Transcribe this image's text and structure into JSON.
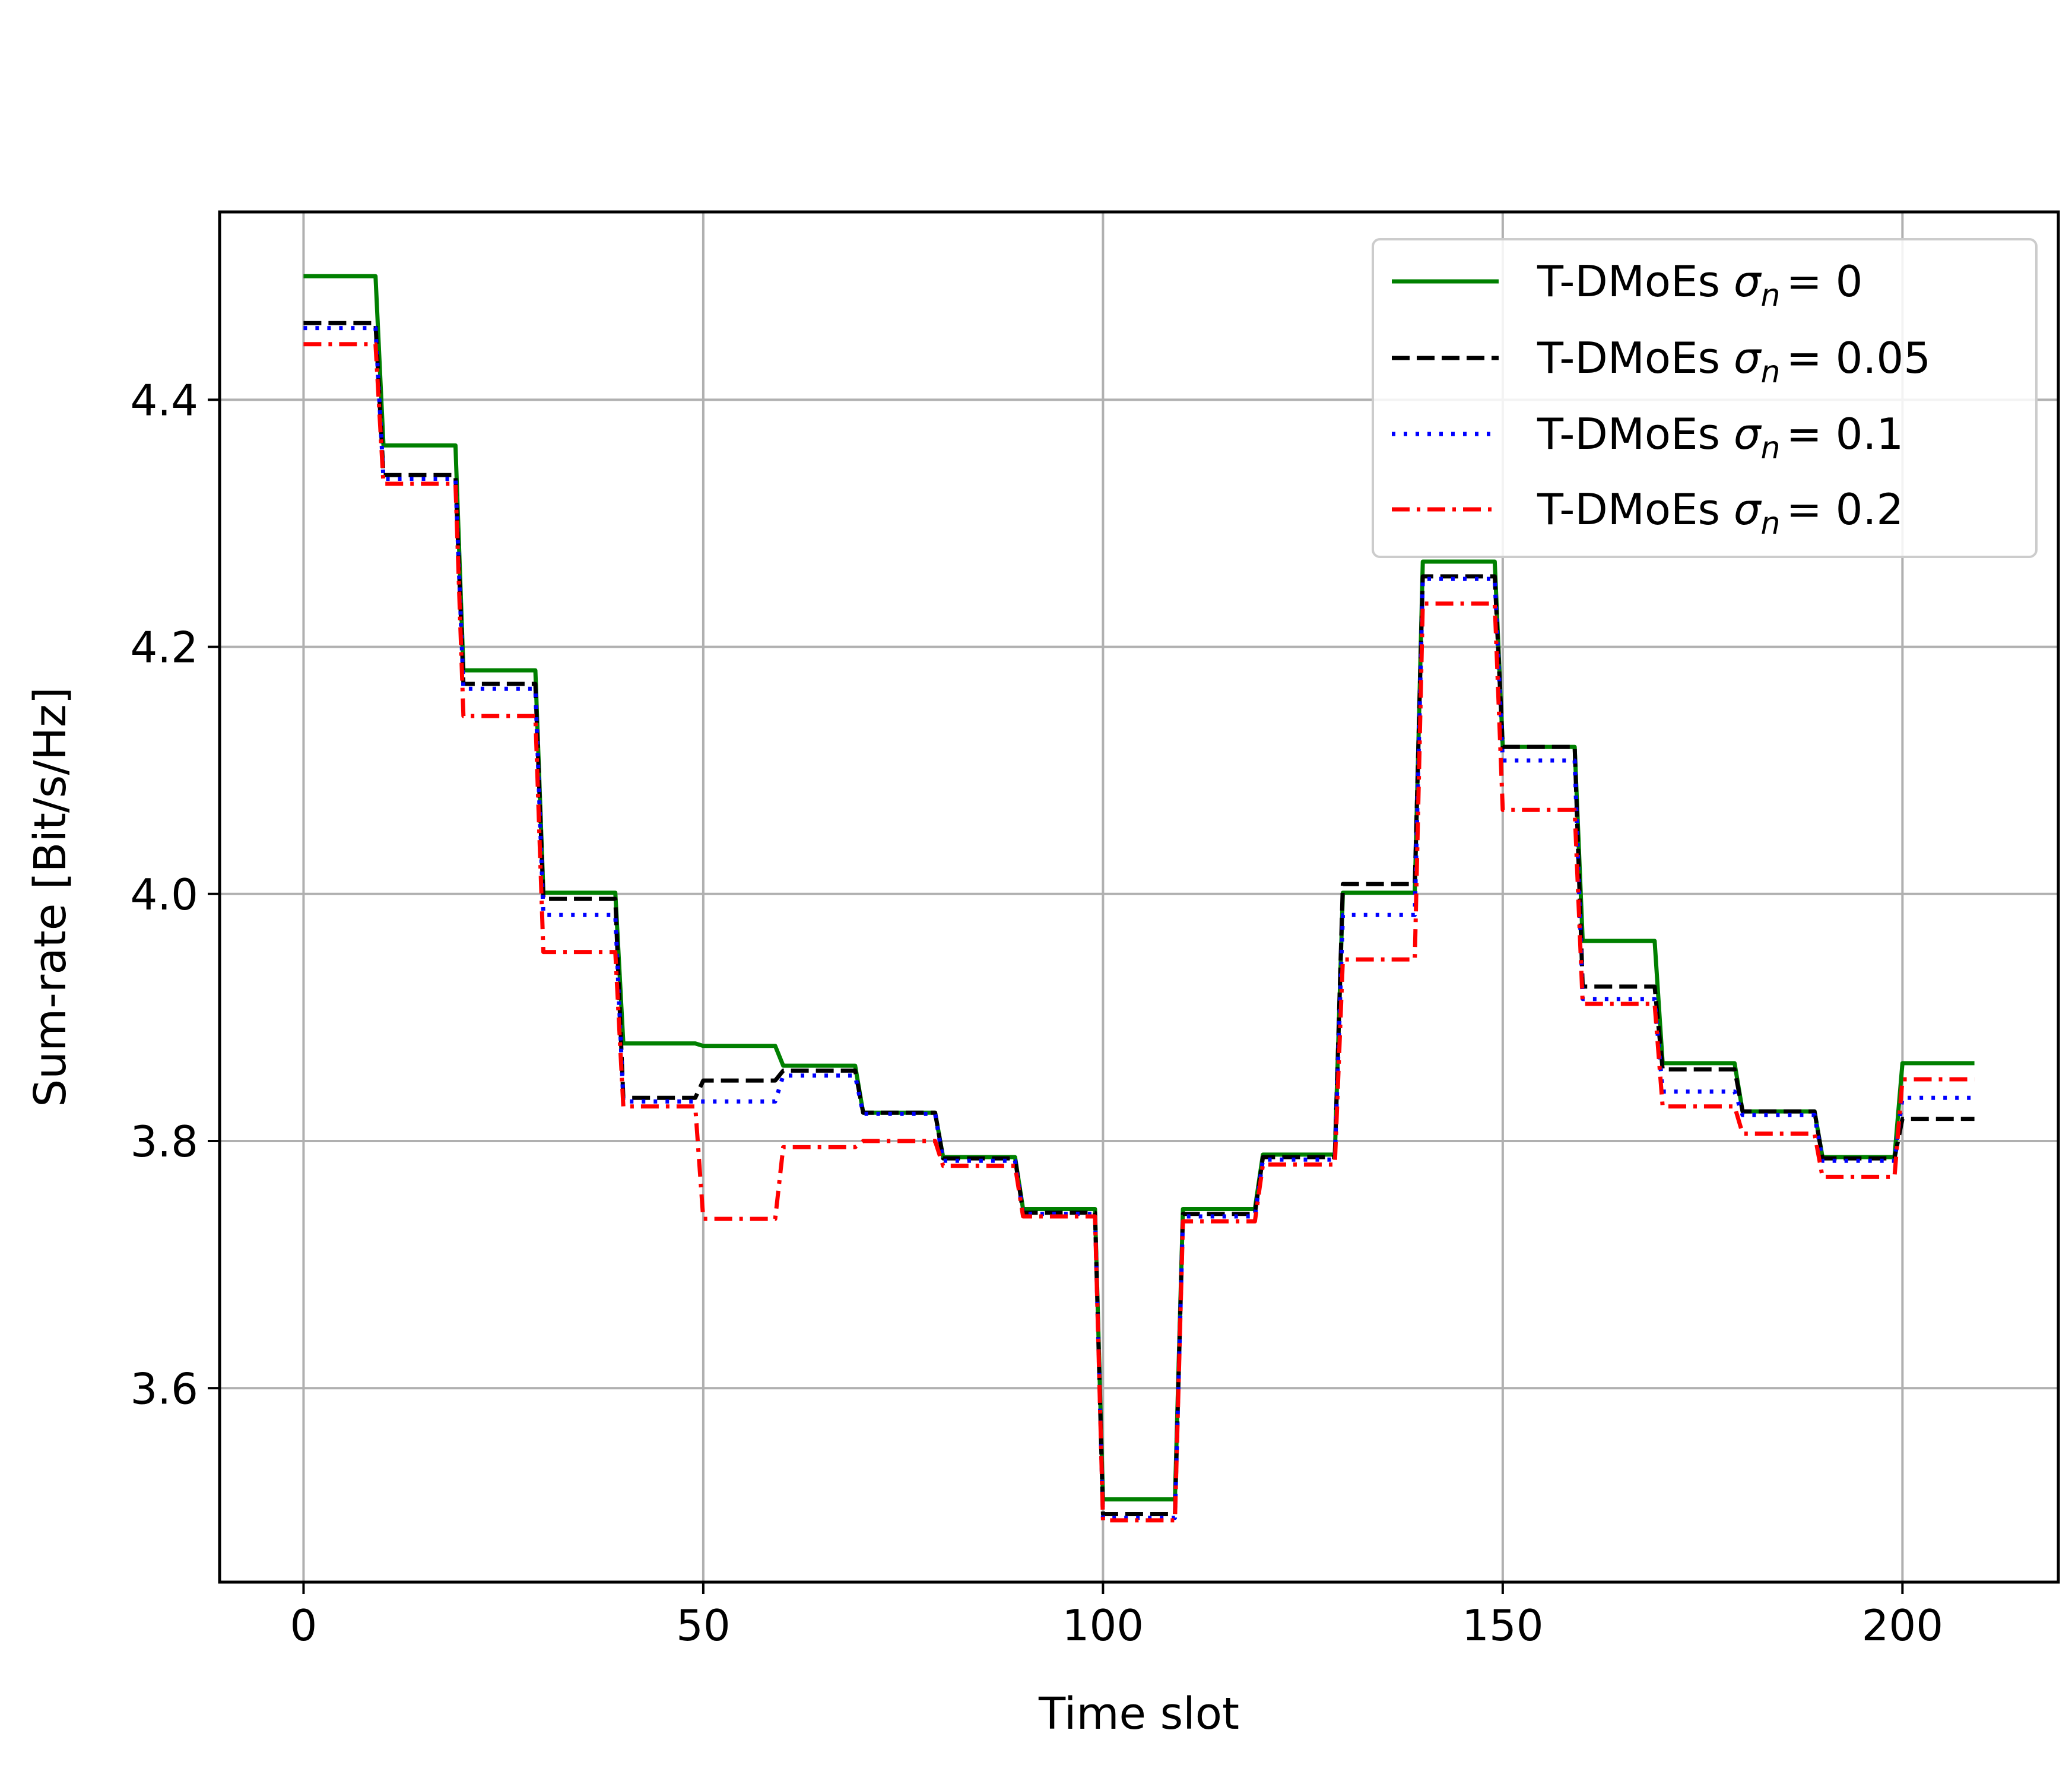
{
  "chart_data": {
    "type": "line",
    "title": "",
    "xlabel": "Time slot",
    "ylabel": "Sum-rate [Bit/s/Hz]",
    "xlim": [
      -10.5,
      219.5
    ],
    "ylim": [
      3.443,
      4.552
    ],
    "xticks": [
      0,
      50,
      100,
      150,
      200
    ],
    "xtick_labels": [
      "0",
      "50",
      "100",
      "150",
      "200"
    ],
    "yticks": [
      3.6,
      3.8,
      4.0,
      4.2,
      4.4
    ],
    "ytick_labels": [
      "3.6",
      "3.8",
      "4.0",
      "4.2",
      "4.4"
    ],
    "grid": true,
    "legend_position": "top-right",
    "step_breaks": [
      0,
      9,
      10,
      19,
      20,
      29,
      30,
      39,
      40,
      49,
      50,
      59,
      60,
      69,
      70,
      79,
      80,
      89,
      90,
      99,
      100,
      109,
      110,
      119,
      120,
      129,
      130,
      139,
      140,
      149,
      150,
      159,
      160,
      169,
      170,
      179,
      180,
      189,
      190,
      199,
      200,
      209
    ],
    "series": [
      {
        "name": "T-DMoEs σₙ = 0",
        "legend_prefix": "T-DMoEs",
        "legend_sigma": "σ",
        "legend_sub": "n",
        "legend_value": "= 0",
        "color": "#008000",
        "dash": "solid",
        "x": [
          0,
          9,
          10,
          19,
          20,
          29,
          30,
          39,
          40,
          49,
          50,
          59,
          60,
          69,
          70,
          79,
          80,
          89,
          90,
          99,
          100,
          109,
          110,
          119,
          120,
          129,
          130,
          139,
          140,
          149,
          150,
          159,
          160,
          169,
          170,
          179,
          180,
          189,
          190,
          199,
          200,
          209
        ],
        "y": [
          4.5,
          4.5,
          4.363,
          4.363,
          4.181,
          4.181,
          4.001,
          4.001,
          3.879,
          3.879,
          3.877,
          3.877,
          3.861,
          3.861,
          3.823,
          3.823,
          3.787,
          3.787,
          3.745,
          3.745,
          3.51,
          3.51,
          3.745,
          3.745,
          3.789,
          3.789,
          4.001,
          4.001,
          4.269,
          4.269,
          4.119,
          4.119,
          3.962,
          3.962,
          3.863,
          3.863,
          3.824,
          3.824,
          3.787,
          3.787,
          3.863,
          3.863
        ]
      },
      {
        "name": "T-DMoEs σₙ = 0.05",
        "legend_prefix": "T-DMoEs",
        "legend_sigma": "σ",
        "legend_sub": "n",
        "legend_value": "= 0.05",
        "color": "#000000",
        "dash": "dashed",
        "x": [
          0,
          9,
          10,
          19,
          20,
          29,
          30,
          39,
          40,
          49,
          50,
          59,
          60,
          69,
          70,
          79,
          80,
          89,
          90,
          99,
          100,
          109,
          110,
          119,
          120,
          129,
          130,
          139,
          140,
          149,
          150,
          159,
          160,
          169,
          170,
          179,
          180,
          189,
          190,
          199,
          200,
          209
        ],
        "y": [
          4.462,
          4.462,
          4.339,
          4.339,
          4.17,
          4.17,
          3.996,
          3.996,
          3.835,
          3.835,
          3.849,
          3.849,
          3.857,
          3.857,
          3.823,
          3.823,
          3.786,
          3.786,
          3.742,
          3.742,
          3.498,
          3.498,
          3.741,
          3.741,
          3.787,
          3.787,
          4.008,
          4.008,
          4.257,
          4.257,
          4.119,
          4.119,
          3.925,
          3.925,
          3.858,
          3.858,
          3.824,
          3.824,
          3.786,
          3.786,
          3.818,
          3.818
        ]
      },
      {
        "name": "T-DMoEs σₙ = 0.1",
        "legend_prefix": "T-DMoEs",
        "legend_sigma": "σ",
        "legend_sub": "n",
        "legend_value": "= 0.1",
        "color": "#0000ff",
        "dash": "dotted",
        "x": [
          0,
          9,
          10,
          19,
          20,
          29,
          30,
          39,
          40,
          49,
          50,
          59,
          60,
          69,
          70,
          79,
          80,
          89,
          90,
          99,
          100,
          109,
          110,
          119,
          120,
          129,
          130,
          139,
          140,
          149,
          150,
          159,
          160,
          169,
          170,
          179,
          180,
          189,
          190,
          199,
          200,
          209
        ],
        "y": [
          4.458,
          4.458,
          4.336,
          4.336,
          4.166,
          4.166,
          3.983,
          3.983,
          3.832,
          3.832,
          3.832,
          3.832,
          3.853,
          3.853,
          3.822,
          3.822,
          3.784,
          3.784,
          3.741,
          3.741,
          3.495,
          3.495,
          3.739,
          3.739,
          3.785,
          3.785,
          3.983,
          3.983,
          4.255,
          4.255,
          4.108,
          4.108,
          3.915,
          3.915,
          3.84,
          3.84,
          3.821,
          3.821,
          3.784,
          3.784,
          3.835,
          3.835
        ]
      },
      {
        "name": "T-DMoEs σₙ = 0.2",
        "legend_prefix": "T-DMoEs",
        "legend_sigma": "σ",
        "legend_sub": "n",
        "legend_value": "= 0.2",
        "color": "#ff0000",
        "dash": "dashdot",
        "x": [
          0,
          9,
          10,
          19,
          20,
          29,
          30,
          39,
          40,
          49,
          50,
          59,
          60,
          69,
          70,
          79,
          80,
          89,
          90,
          99,
          100,
          109,
          110,
          119,
          120,
          129,
          130,
          139,
          140,
          149,
          150,
          159,
          160,
          169,
          170,
          179,
          180,
          189,
          190,
          199,
          200,
          209
        ],
        "y": [
          4.445,
          4.445,
          4.332,
          4.332,
          4.144,
          4.144,
          3.953,
          3.953,
          3.828,
          3.828,
          3.737,
          3.737,
          3.795,
          3.795,
          3.8,
          3.8,
          3.78,
          3.78,
          3.739,
          3.739,
          3.493,
          3.493,
          3.735,
          3.735,
          3.781,
          3.781,
          3.947,
          3.947,
          4.235,
          4.235,
          4.068,
          4.068,
          3.911,
          3.911,
          3.828,
          3.828,
          3.806,
          3.806,
          3.771,
          3.771,
          3.85,
          3.85
        ]
      }
    ]
  }
}
